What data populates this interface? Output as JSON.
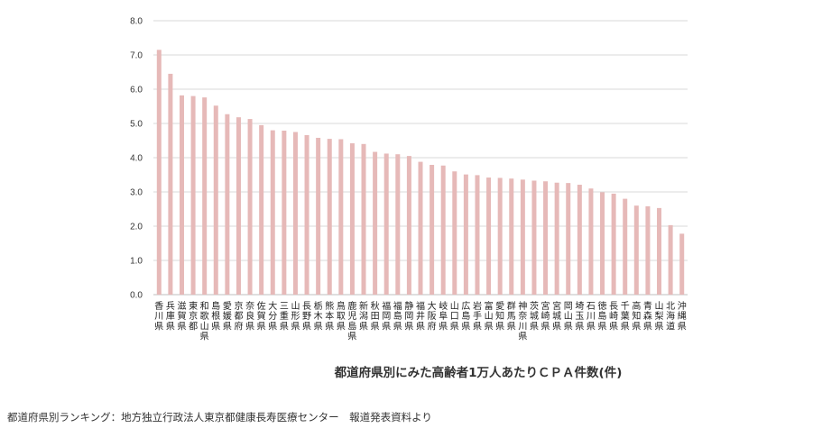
{
  "chart_data": {
    "type": "bar",
    "title": "都道府県別にみた高齢者1万人あたりＣＰＡ件数(件)",
    "xlabel": "",
    "ylabel": "",
    "ylim": [
      0,
      8
    ],
    "yticks": [
      "0.0",
      "1.0",
      "2.0",
      "3.0",
      "4.0",
      "5.0",
      "6.0",
      "7.0",
      "8.0"
    ],
    "grid": true,
    "legend": "none",
    "bar_color": "#e6b9b8",
    "categories": [
      "香川県",
      "兵庫県",
      "滋賀県",
      "東京都",
      "和歌山県",
      "島根県",
      "愛媛県",
      "京都府",
      "奈良県",
      "佐賀県",
      "大分県",
      "三重県",
      "山形県",
      "長野県",
      "栃木県",
      "熊本県",
      "鳥取県",
      "鹿児島県",
      "新潟県",
      "秋田県",
      "福岡県",
      "福島県",
      "静岡県",
      "福井県",
      "大阪府",
      "岐阜県",
      "山口県",
      "広島県",
      "岩手県",
      "富山県",
      "愛知県",
      "群馬県",
      "神奈川県",
      "茨城県",
      "宮崎県",
      "宮城県",
      "岡山県",
      "埼玉県",
      "石川県",
      "徳島県",
      "長崎県",
      "千葉県",
      "高知県",
      "青森県",
      "山梨県",
      "北海道",
      "沖縄県"
    ],
    "values": [
      7.15,
      6.45,
      5.82,
      5.8,
      5.76,
      5.52,
      5.27,
      5.18,
      5.13,
      4.95,
      4.8,
      4.79,
      4.75,
      4.66,
      4.58,
      4.55,
      4.54,
      4.42,
      4.4,
      4.17,
      4.12,
      4.1,
      4.05,
      3.88,
      3.79,
      3.77,
      3.6,
      3.51,
      3.49,
      3.42,
      3.41,
      3.39,
      3.36,
      3.33,
      3.31,
      3.27,
      3.26,
      3.21,
      3.1,
      2.99,
      2.95,
      2.8,
      2.6,
      2.58,
      2.53,
      2.03,
      1.78
    ]
  },
  "source_text": "都道府県別ランキング：地方独立行政法人東京都健康長寿医療センター　報道発表資料より"
}
